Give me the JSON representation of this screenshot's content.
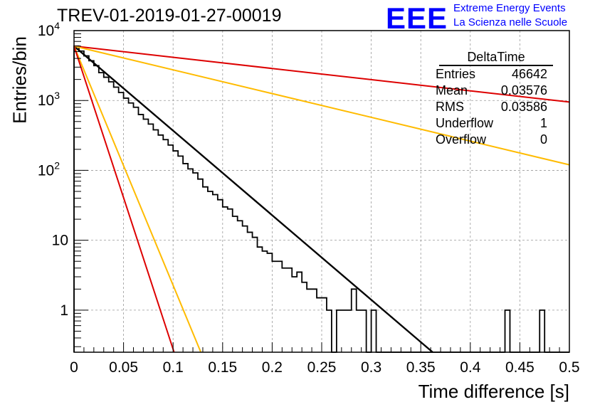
{
  "title": "TREV-01-2019-01-27-00019",
  "logo": {
    "mark": "EEE",
    "line1": "Extreme Energy Events",
    "line2": "La Scienza nelle Scuole"
  },
  "stats_box": {
    "name": "DeltaTime",
    "rows": [
      {
        "label": "Entries",
        "value": "46642"
      },
      {
        "label": "Mean",
        "value": "0.03576"
      },
      {
        "label": "RMS",
        "value": "0.03586"
      },
      {
        "label": "Underflow",
        "value": "1"
      },
      {
        "label": "Overflow",
        "value": "0"
      }
    ]
  },
  "chart_data": {
    "type": "line",
    "title": "TREV-01-2019-01-27-00019",
    "xlabel": "Time difference [s]",
    "ylabel": "Entries/bin",
    "xlim": [
      0,
      0.5
    ],
    "ylim": [
      0.25,
      10000
    ],
    "yscale": "log",
    "grid": true,
    "x_ticks": [
      "0",
      "0.05",
      "0.1",
      "0.15",
      "0.2",
      "0.25",
      "0.3",
      "0.35",
      "0.4",
      "0.45",
      "0.5"
    ],
    "y_ticks": [
      {
        "value": 1,
        "label": "1"
      },
      {
        "value": 10,
        "label": "10"
      },
      {
        "value": 100,
        "label": "10^2"
      },
      {
        "value": 1000,
        "label": "10^3"
      },
      {
        "value": 10000,
        "label": "10^4"
      }
    ],
    "histogram": {
      "bin_width": 0.005,
      "counts": [
        6000,
        5100,
        4350,
        3700,
        3150,
        2500,
        2150,
        1850,
        1550,
        1300,
        1080,
        920,
        800,
        630,
        540,
        460,
        380,
        320,
        275,
        230,
        190,
        160,
        125,
        105,
        92,
        75,
        58,
        50,
        45,
        38,
        30,
        28,
        22,
        19,
        16,
        13,
        11,
        8,
        7,
        6.5,
        5,
        5,
        4,
        4,
        3,
        3.5,
        2.5,
        2,
        2,
        1.5,
        1.5,
        1,
        0,
        1,
        1,
        1,
        2,
        1,
        1,
        0,
        1,
        0,
        0,
        0,
        0,
        0,
        0,
        0,
        0,
        0,
        0,
        0,
        0,
        0,
        0,
        0,
        0,
        0,
        0,
        0,
        0,
        0,
        0,
        0,
        0,
        0,
        0,
        1,
        0,
        0,
        0,
        0,
        0,
        0,
        1,
        0,
        0,
        0,
        0,
        0
      ]
    },
    "lines": [
      {
        "color": "#000000",
        "x": [
          0,
          0.362
        ],
        "y": [
          6000,
          0.25
        ]
      },
      {
        "color": "#dd0000",
        "x": [
          0,
          0.5
        ],
        "y": [
          6000,
          950
        ]
      },
      {
        "color": "#ffbb00",
        "x": [
          0,
          0.5
        ],
        "y": [
          6000,
          120
        ]
      },
      {
        "color": "#ffbb00",
        "x": [
          0,
          0.128
        ],
        "y": [
          6000,
          0.25
        ]
      },
      {
        "color": "#dd0000",
        "x": [
          0,
          0.101
        ],
        "y": [
          6000,
          0.25
        ]
      }
    ]
  }
}
